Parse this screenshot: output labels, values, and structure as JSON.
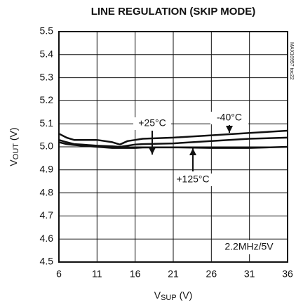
{
  "chart_data": {
    "type": "line",
    "title": "LINE REGULATION (SKIP MODE)",
    "x_label": [
      "V",
      "SUP",
      " (V)"
    ],
    "y_label": [
      "V",
      "OUT",
      " (V)"
    ],
    "x": [
      6,
      7,
      8,
      9,
      11,
      13,
      14,
      15,
      16,
      17,
      21,
      26,
      31,
      36
    ],
    "series": [
      {
        "name": "-40°C",
        "color": "#111111",
        "values": [
          5.057,
          5.04,
          5.03,
          5.03,
          5.03,
          5.02,
          5.01,
          5.025,
          5.03,
          5.035,
          5.04,
          5.05,
          5.06,
          5.07
        ]
      },
      {
        "name": "+25°C",
        "color": "#111111",
        "values": [
          5.03,
          5.02,
          5.012,
          5.01,
          5.005,
          5.002,
          5.0,
          5.005,
          5.01,
          5.012,
          5.015,
          5.025,
          5.035,
          5.04
        ]
      },
      {
        "name": "+125°C",
        "color": "#111111",
        "values": [
          5.02,
          5.012,
          5.008,
          5.005,
          5.0,
          4.995,
          4.995,
          4.995,
          4.995,
          4.997,
          4.998,
          4.995,
          4.995,
          5.0
        ]
      }
    ],
    "annotations": [
      "2.2MHz/5V",
      "MAX16957 toc22"
    ],
    "xlim": [
      6,
      36
    ],
    "xticks": [
      6,
      11,
      16,
      21,
      26,
      31,
      36
    ],
    "ylim": [
      4.5,
      5.5
    ],
    "yticks": [
      {
        "value": 4.5,
        "label": "4.5"
      },
      4.6,
      4.7,
      4.8,
      4.9,
      {
        "value": 5.0,
        "label": "5.0"
      },
      5.1,
      5.2,
      5.3,
      5.4,
      5.5
    ],
    "grid": true
  }
}
